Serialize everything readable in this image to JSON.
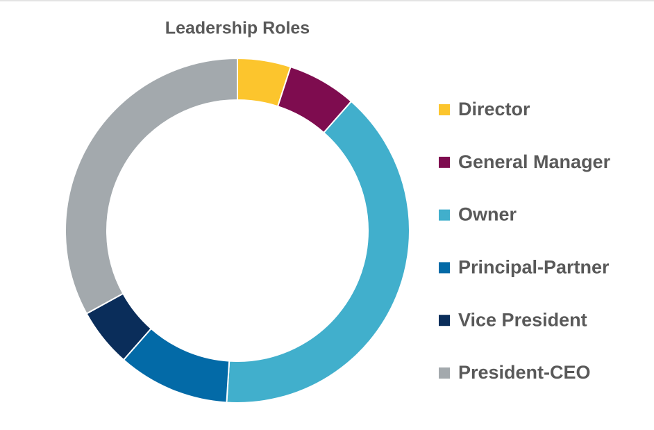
{
  "chart_data": {
    "type": "donut",
    "title": "Leadership Roles",
    "categories": [
      "Director",
      "General Manager",
      "Owner",
      "Principal-Partner",
      "Vice President",
      "President-CEO"
    ],
    "values": [
      5,
      6.5,
      39.5,
      10.5,
      5.5,
      33
    ],
    "colors": [
      "#fcc52d",
      "#7e0c4f",
      "#41afcc",
      "#036aa7",
      "#0a2d5a",
      "#a3a9ad"
    ],
    "legend": "right"
  }
}
